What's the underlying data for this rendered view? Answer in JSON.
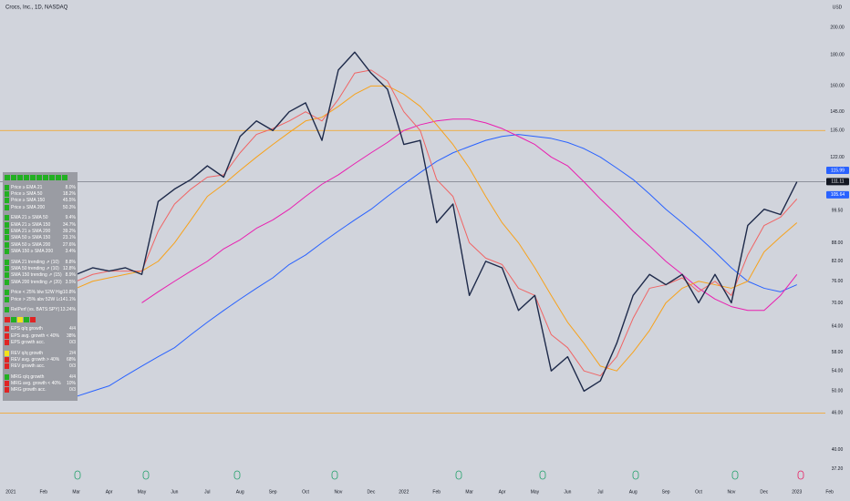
{
  "chart_data": {
    "type": "line",
    "title": "Crocs, Inc., 1D, NASDAQ",
    "currency": "USD",
    "log_scale": true,
    "x": [
      2.0,
      2.5,
      3.0,
      3.5,
      4.0,
      4.5,
      5.0,
      5.5,
      6.0,
      6.5,
      7.0,
      7.5,
      8.0,
      8.5,
      9.0,
      9.5,
      10.0,
      10.5,
      11.0,
      11.5,
      12.0,
      12.5,
      13.0,
      13.5,
      14.0,
      14.5,
      15.0,
      15.5,
      16.0,
      16.5,
      17.0,
      17.5,
      18.0,
      18.5,
      19.0,
      19.5,
      20.0,
      20.5,
      21.0,
      21.5,
      22.0,
      22.5,
      23.0,
      23.5,
      24.0
    ],
    "series": [
      {
        "color": "#2962ff",
        "width": 1,
        "values": [
          49,
          50,
          51,
          53,
          55,
          57,
          59,
          62,
          65,
          68,
          71,
          74,
          77,
          81,
          84,
          88,
          92,
          96,
          100,
          105,
          110,
          115,
          120,
          124,
          127,
          130,
          132,
          133,
          132,
          131,
          129,
          126,
          122,
          117,
          112,
          106,
          100,
          95,
          90,
          85,
          80,
          76,
          74,
          73,
          75
        ]
      },
      {
        "color": "#e91eb0",
        "width": 1,
        "values": [
          null,
          null,
          null,
          null,
          70,
          73,
          76,
          79,
          82,
          86,
          89,
          93,
          96,
          100,
          105,
          110,
          114,
          119,
          124,
          129,
          135,
          138,
          140,
          141,
          141,
          139,
          136,
          132,
          128,
          122,
          118,
          111,
          104,
          98,
          92,
          87,
          82,
          78,
          74,
          71,
          69,
          68,
          68,
          72,
          78
        ]
      },
      {
        "color": "#f7a21b",
        "width": 1,
        "values": [
          74,
          76,
          77,
          78,
          79,
          82,
          88,
          96,
          105,
          110,
          116,
          122,
          128,
          134,
          140,
          142,
          148,
          155,
          160,
          160,
          155,
          148,
          138,
          128,
          117,
          105,
          95,
          88,
          80,
          72,
          65,
          60,
          55,
          54,
          58,
          63,
          70,
          74,
          76,
          75,
          74,
          76,
          85,
          90,
          95
        ]
      },
      {
        "color": "#f06464",
        "width": 1,
        "values": [
          76,
          78,
          79,
          79,
          79,
          92,
          102,
          108,
          113,
          114,
          124,
          133,
          136,
          140,
          145,
          140,
          152,
          168,
          170,
          163,
          145,
          135,
          112,
          105,
          88,
          83,
          81,
          74,
          72,
          62,
          59,
          54,
          53,
          57,
          66,
          74,
          75,
          77,
          73,
          76,
          72,
          84,
          94,
          97,
          104
        ]
      },
      {
        "color": "#1e2a4a",
        "width": 1.4,
        "values": [
          78,
          80,
          79,
          80,
          78,
          103,
          108,
          112,
          118,
          113,
          132,
          140,
          135,
          145,
          150,
          130,
          170,
          182,
          168,
          158,
          128,
          130,
          95,
          102,
          72,
          82,
          80,
          68,
          72,
          54,
          57,
          50,
          52,
          60,
          72,
          78,
          75,
          78,
          70,
          78,
          70,
          94,
          100,
          98,
          111
        ]
      }
    ],
    "xlim": [
      -0.33,
      24.87
    ],
    "xticks": [
      {
        "value": 0,
        "label": "2021"
      },
      {
        "value": 1,
        "label": "Feb"
      },
      {
        "value": 2,
        "label": "Mar"
      },
      {
        "value": 3,
        "label": "Apr"
      },
      {
        "value": 4,
        "label": "May"
      },
      {
        "value": 5,
        "label": "Jun"
      },
      {
        "value": 6,
        "label": "Jul"
      },
      {
        "value": 7,
        "label": "Aug"
      },
      {
        "value": 8,
        "label": "Sep"
      },
      {
        "value": 9,
        "label": "Oct"
      },
      {
        "value": 10,
        "label": "Nov"
      },
      {
        "value": 11,
        "label": "Dec"
      },
      {
        "value": 12,
        "label": "2022"
      },
      {
        "value": 13,
        "label": "Feb"
      },
      {
        "value": 14,
        "label": "Mar"
      },
      {
        "value": 15,
        "label": "Apr"
      },
      {
        "value": 16,
        "label": "May"
      },
      {
        "value": 17,
        "label": "Jun"
      },
      {
        "value": 18,
        "label": "Jul"
      },
      {
        "value": 19,
        "label": "Aug"
      },
      {
        "value": 20,
        "label": "Sep"
      },
      {
        "value": 21,
        "label": "Oct"
      },
      {
        "value": 22,
        "label": "Nov"
      },
      {
        "value": 23,
        "label": "Dec"
      },
      {
        "value": 24,
        "label": "2023"
      },
      {
        "value": 25,
        "label": "Feb"
      }
    ],
    "ylim": [
      35.5,
      222
    ],
    "yticks": [
      {
        "value": 200,
        "label": "200.00"
      },
      {
        "value": 180,
        "label": "180.00"
      },
      {
        "value": 160,
        "label": "160.00"
      },
      {
        "value": 145,
        "label": "145.00"
      },
      {
        "value": 135,
        "label": "135.00"
      },
      {
        "value": 122,
        "label": "122.00"
      },
      {
        "value": 99.5,
        "label": "99.50"
      },
      {
        "value": 88,
        "label": "88.00"
      },
      {
        "value": 82,
        "label": "82.00"
      },
      {
        "value": 76,
        "label": "76.00"
      },
      {
        "value": 70,
        "label": "70.00"
      },
      {
        "value": 64,
        "label": "64.00"
      },
      {
        "value": 58,
        "label": "58.00"
      },
      {
        "value": 54,
        "label": "54.00"
      },
      {
        "value": 50,
        "label": "50.00"
      },
      {
        "value": 46,
        "label": "46.00"
      },
      {
        "value": 40,
        "label": "40.00"
      },
      {
        "value": 37.2,
        "label": "37.20"
      }
    ],
    "hlines": [
      {
        "value": 135,
        "color": "#f7a21b"
      },
      {
        "value": 46,
        "color": "#f7a21b"
      },
      {
        "value": 111.11,
        "color": "#787b86"
      }
    ],
    "price_labels": [
      {
        "value": 115.99,
        "color": "#2962ff"
      },
      {
        "value": 111.11,
        "color": "#131722"
      },
      {
        "value": 105.64,
        "color": "#2962ff"
      }
    ]
  },
  "panel": {
    "groups": [
      {
        "rows": [
          {
            "label": "Price ≥ EMA 21",
            "value": "8.0%",
            "status": "#22b022"
          },
          {
            "label": "Price ≥ SMA 50",
            "value": "18.2%",
            "status": "#22b022"
          },
          {
            "label": "Price ≥ SMA 150",
            "value": "45.5%",
            "status": "#22b022"
          },
          {
            "label": "Price ≥ SMA 200",
            "value": "50.3%",
            "status": "#22b022"
          }
        ]
      },
      {
        "rows": [
          {
            "label": "EMA 21 ≥ SMA 50",
            "value": "9.4%",
            "status": "#22b022"
          },
          {
            "label": "EMA 21 ≥ SMA 150",
            "value": "34.7%",
            "status": "#22b022"
          },
          {
            "label": "EMA 21 ≥ SMA 200",
            "value": "39.2%",
            "status": "#22b022"
          },
          {
            "label": "SMA 50 ≥ SMA 150",
            "value": "23.1%",
            "status": "#22b022"
          },
          {
            "label": "SMA 50 ≥ SMA 200",
            "value": "27.6%",
            "status": "#22b022"
          },
          {
            "label": "SMA 150 ≥ SMA 200",
            "value": "3.4%",
            "status": "#22b022"
          }
        ]
      },
      {
        "rows": [
          {
            "label": "SMA 21 trending ⇗ (10)",
            "value": "8.8%",
            "status": "#22b022"
          },
          {
            "label": "SMA 50 trending ⇗ (10)",
            "value": "12.8%",
            "status": "#22b022"
          },
          {
            "label": "SMA 150 trending ⇗ (15)",
            "value": "8.9%",
            "status": "#22b022"
          },
          {
            "label": "SMA 200 trending ⇗ (20)",
            "value": "3.5%",
            "status": "#22b022"
          }
        ]
      },
      {
        "rows": [
          {
            "label": "Price < 25% blw 52W High",
            "value": "10.8%",
            "status": "#22b022"
          },
          {
            "label": "Price > 25% abv 52W Low",
            "value": "141.1%",
            "status": "#22b022"
          }
        ]
      },
      {
        "rows": [
          {
            "label": "RelPerf (vs. BATS:SPY) > 1%",
            "value": "13.24%",
            "status": "#22b022"
          }
        ]
      },
      {
        "rows": [
          {
            "label": "EPS q/q growth",
            "value": "4/4",
            "status": "#e02424"
          },
          {
            "label": "EPS avg. growth < 40%",
            "value": "38%",
            "status": "#e02424"
          },
          {
            "label": "EPS growth acc.",
            "value": "0/3",
            "status": "#e02424"
          }
        ]
      },
      {
        "rows": [
          {
            "label": "REV q/q growth",
            "value": "2/4",
            "status": "#f2e21b"
          },
          {
            "label": "REV avg. growth > 40%",
            "value": "68%",
            "status": "#e02424"
          },
          {
            "label": "REV growth acc.",
            "value": "0/3",
            "status": "#e02424"
          }
        ]
      },
      {
        "rows": [
          {
            "label": "MRG q/q growth",
            "value": "4/4",
            "status": "#22b022"
          },
          {
            "label": "MRG avg. growth < 40%",
            "value": "10%",
            "status": "#e02424"
          },
          {
            "label": "MRG growth acc.",
            "value": "0/3",
            "status": "#e02424"
          }
        ]
      }
    ]
  }
}
